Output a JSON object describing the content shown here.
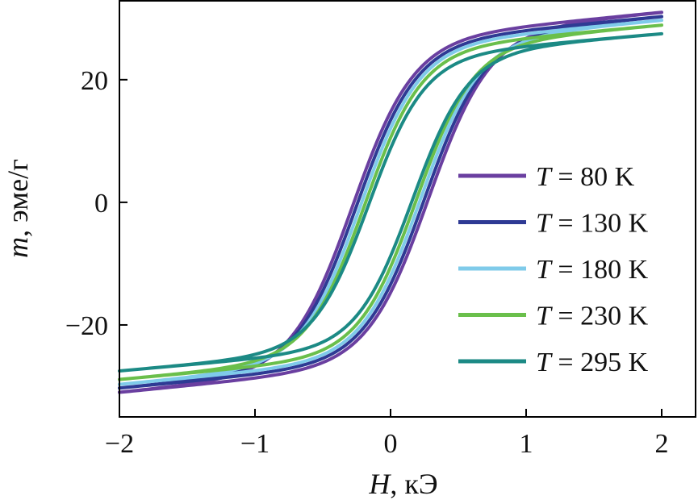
{
  "chart_data": {
    "type": "line",
    "title": "",
    "xlabel": {
      "italic": "H",
      "rest": ", кЭ"
    },
    "ylabel": {
      "italic": "m",
      "rest": ", эме/г"
    },
    "xlim": [
      -2,
      2
    ],
    "ylim": [
      -35,
      33
    ],
    "xticks": [
      -2,
      -1,
      0,
      1,
      2
    ],
    "xtick_labels": [
      "−2",
      "−1",
      "0",
      "1",
      "2"
    ],
    "yticks": [
      -20,
      0,
      20
    ],
    "ytick_labels": [
      "−20",
      "0",
      "20"
    ],
    "grid": false,
    "legend_position": "right",
    "series": [
      {
        "name": "80 K",
        "legend_var": "T",
        "legend_eq": " = ",
        "legend_value": "80 K",
        "color": "#6a3fa0",
        "ms": 31.0,
        "hc": 0.28,
        "w": 0.45,
        "k": 0.052
      },
      {
        "name": "130 K",
        "legend_var": "T",
        "legend_eq": " = ",
        "legend_value": "130 K",
        "color": "#2e3a94",
        "ms": 30.3,
        "hc": 0.25,
        "w": 0.44,
        "k": 0.05
      },
      {
        "name": "180 K",
        "legend_var": "T",
        "legend_eq": " = ",
        "legend_value": "180 K",
        "color": "#7fcbea",
        "ms": 29.7,
        "hc": 0.22,
        "w": 0.43,
        "k": 0.048
      },
      {
        "name": "230 K",
        "legend_var": "T",
        "legend_eq": " = ",
        "legend_value": "230 K",
        "color": "#6abf4b",
        "ms": 28.9,
        "hc": 0.19,
        "w": 0.42,
        "k": 0.045
      },
      {
        "name": "295 K",
        "legend_var": "T",
        "legend_eq": " = ",
        "legend_value": "295 K",
        "color": "#1c8a85",
        "ms": 27.5,
        "hc": 0.16,
        "w": 0.41,
        "k": 0.04
      }
    ]
  }
}
